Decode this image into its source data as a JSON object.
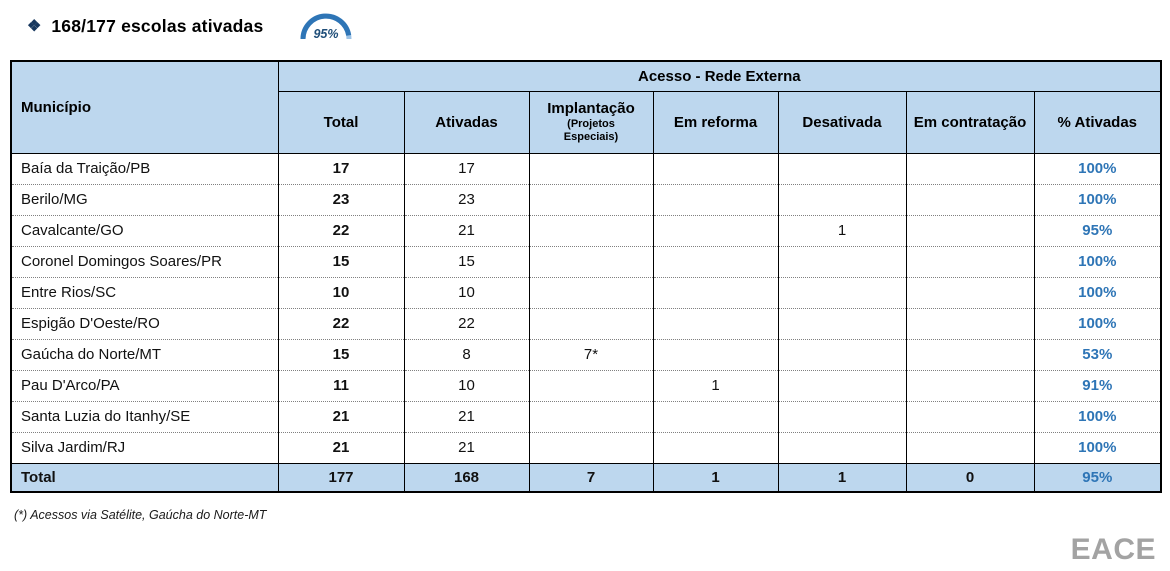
{
  "header": {
    "bullet": "❖",
    "title": "168/177 escolas ativadas",
    "gauge_value": "95%"
  },
  "table": {
    "group_header": "Acesso - Rede Externa",
    "col_municipio": "Município",
    "columns": [
      "Total",
      "Ativadas",
      "Implantação",
      "Em reforma",
      "Desativada",
      "Em contratação",
      "% Ativadas"
    ],
    "implantacao_sub": "(Projetos Especiais)",
    "rows": [
      {
        "municipio": "Baía da Traição/PB",
        "total": "17",
        "ativadas": "17",
        "implantacao": "",
        "reforma": "",
        "desativada": "",
        "contratacao": "",
        "pct": "100%"
      },
      {
        "municipio": "Berilo/MG",
        "total": "23",
        "ativadas": "23",
        "implantacao": "",
        "reforma": "",
        "desativada": "",
        "contratacao": "",
        "pct": "100%"
      },
      {
        "municipio": "Cavalcante/GO",
        "total": "22",
        "ativadas": "21",
        "implantacao": "",
        "reforma": "",
        "desativada": "1",
        "contratacao": "",
        "pct": "95%"
      },
      {
        "municipio": "Coronel Domingos Soares/PR",
        "total": "15",
        "ativadas": "15",
        "implantacao": "",
        "reforma": "",
        "desativada": "",
        "contratacao": "",
        "pct": "100%"
      },
      {
        "municipio": "Entre Rios/SC",
        "total": "10",
        "ativadas": "10",
        "implantacao": "",
        "reforma": "",
        "desativada": "",
        "contratacao": "",
        "pct": "100%"
      },
      {
        "municipio": "Espigão D'Oeste/RO",
        "total": "22",
        "ativadas": "22",
        "implantacao": "",
        "reforma": "",
        "desativada": "",
        "contratacao": "",
        "pct": "100%"
      },
      {
        "municipio": "Gaúcha do Norte/MT",
        "total": "15",
        "ativadas": "8",
        "implantacao": "7*",
        "reforma": "",
        "desativada": "",
        "contratacao": "",
        "pct": "53%"
      },
      {
        "municipio": "Pau D'Arco/PA",
        "total": "11",
        "ativadas": "10",
        "implantacao": "",
        "reforma": "1",
        "desativada": "",
        "contratacao": "",
        "pct": "91%"
      },
      {
        "municipio": "Santa Luzia do Itanhy/SE",
        "total": "21",
        "ativadas": "21",
        "implantacao": "",
        "reforma": "",
        "desativada": "",
        "contratacao": "",
        "pct": "100%"
      },
      {
        "municipio": "Silva Jardim/RJ",
        "total": "21",
        "ativadas": "21",
        "implantacao": "",
        "reforma": "",
        "desativada": "",
        "contratacao": "",
        "pct": "100%"
      }
    ],
    "total_row": {
      "municipio": "Total",
      "total": "177",
      "ativadas": "168",
      "implantacao": "7",
      "reforma": "1",
      "desativada": "1",
      "contratacao": "0",
      "pct": "95%"
    }
  },
  "footnote": "(*) Acessos via Satélite, Gaúcha do Norte-MT",
  "logo": "EACE",
  "colors": {
    "header_bg": "#BDD7EE",
    "pct_text": "#2E75B6",
    "gauge_blue": "#2E75B6",
    "logo_gray": "#A3A3A3"
  }
}
